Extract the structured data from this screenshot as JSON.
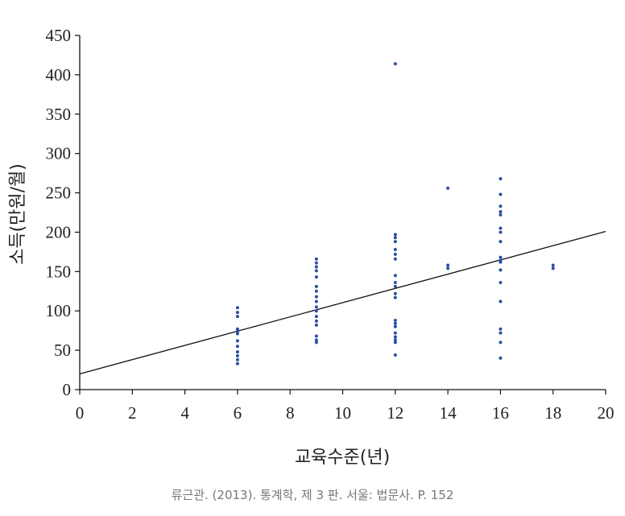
{
  "chart_data": {
    "type": "scatter",
    "xlabel": "교육수준(년)",
    "ylabel": "소득(만원/월)",
    "xlim": [
      0,
      20
    ],
    "ylim": [
      0,
      450
    ],
    "xticks": [
      0,
      2,
      4,
      6,
      8,
      10,
      12,
      14,
      16,
      18,
      20
    ],
    "yticks": [
      0,
      50,
      100,
      150,
      200,
      250,
      300,
      350,
      400,
      450
    ],
    "grid": false,
    "point_color": "#2a4fa0",
    "line_color": "#111111",
    "points": [
      {
        "x": 6,
        "y": 104
      },
      {
        "x": 6,
        "y": 98
      },
      {
        "x": 6,
        "y": 93
      },
      {
        "x": 6,
        "y": 77
      },
      {
        "x": 6,
        "y": 74
      },
      {
        "x": 6,
        "y": 71
      },
      {
        "x": 6,
        "y": 62
      },
      {
        "x": 6,
        "y": 55
      },
      {
        "x": 6,
        "y": 48
      },
      {
        "x": 6,
        "y": 43
      },
      {
        "x": 6,
        "y": 38
      },
      {
        "x": 6,
        "y": 33
      },
      {
        "x": 9,
        "y": 166
      },
      {
        "x": 9,
        "y": 161
      },
      {
        "x": 9,
        "y": 156
      },
      {
        "x": 9,
        "y": 151
      },
      {
        "x": 9,
        "y": 143
      },
      {
        "x": 9,
        "y": 131
      },
      {
        "x": 9,
        "y": 125
      },
      {
        "x": 9,
        "y": 118
      },
      {
        "x": 9,
        "y": 112
      },
      {
        "x": 9,
        "y": 105
      },
      {
        "x": 9,
        "y": 100
      },
      {
        "x": 9,
        "y": 93
      },
      {
        "x": 9,
        "y": 87
      },
      {
        "x": 9,
        "y": 82
      },
      {
        "x": 9,
        "y": 68
      },
      {
        "x": 9,
        "y": 63
      },
      {
        "x": 9,
        "y": 60
      },
      {
        "x": 12,
        "y": 414
      },
      {
        "x": 12,
        "y": 197
      },
      {
        "x": 12,
        "y": 193
      },
      {
        "x": 12,
        "y": 188
      },
      {
        "x": 12,
        "y": 178
      },
      {
        "x": 12,
        "y": 172
      },
      {
        "x": 12,
        "y": 166
      },
      {
        "x": 12,
        "y": 145
      },
      {
        "x": 12,
        "y": 136
      },
      {
        "x": 12,
        "y": 131
      },
      {
        "x": 12,
        "y": 122
      },
      {
        "x": 12,
        "y": 117
      },
      {
        "x": 12,
        "y": 88
      },
      {
        "x": 12,
        "y": 84
      },
      {
        "x": 12,
        "y": 80
      },
      {
        "x": 12,
        "y": 72
      },
      {
        "x": 12,
        "y": 67
      },
      {
        "x": 12,
        "y": 63
      },
      {
        "x": 12,
        "y": 60
      },
      {
        "x": 12,
        "y": 44
      },
      {
        "x": 14,
        "y": 256
      },
      {
        "x": 14,
        "y": 158
      },
      {
        "x": 14,
        "y": 154
      },
      {
        "x": 16,
        "y": 268
      },
      {
        "x": 16,
        "y": 248
      },
      {
        "x": 16,
        "y": 233
      },
      {
        "x": 16,
        "y": 226
      },
      {
        "x": 16,
        "y": 222
      },
      {
        "x": 16,
        "y": 205
      },
      {
        "x": 16,
        "y": 200
      },
      {
        "x": 16,
        "y": 188
      },
      {
        "x": 16,
        "y": 168
      },
      {
        "x": 16,
        "y": 164
      },
      {
        "x": 16,
        "y": 162
      },
      {
        "x": 16,
        "y": 152
      },
      {
        "x": 16,
        "y": 136
      },
      {
        "x": 16,
        "y": 112
      },
      {
        "x": 16,
        "y": 77
      },
      {
        "x": 16,
        "y": 72
      },
      {
        "x": 16,
        "y": 60
      },
      {
        "x": 16,
        "y": 40
      },
      {
        "x": 18,
        "y": 158
      },
      {
        "x": 18,
        "y": 154
      }
    ],
    "regression_line": {
      "intercept": 20,
      "slope": 9.05
    }
  },
  "caption": "류근관. (2013). 통계학, 제 3 판. 서울: 법문사. P. 152"
}
